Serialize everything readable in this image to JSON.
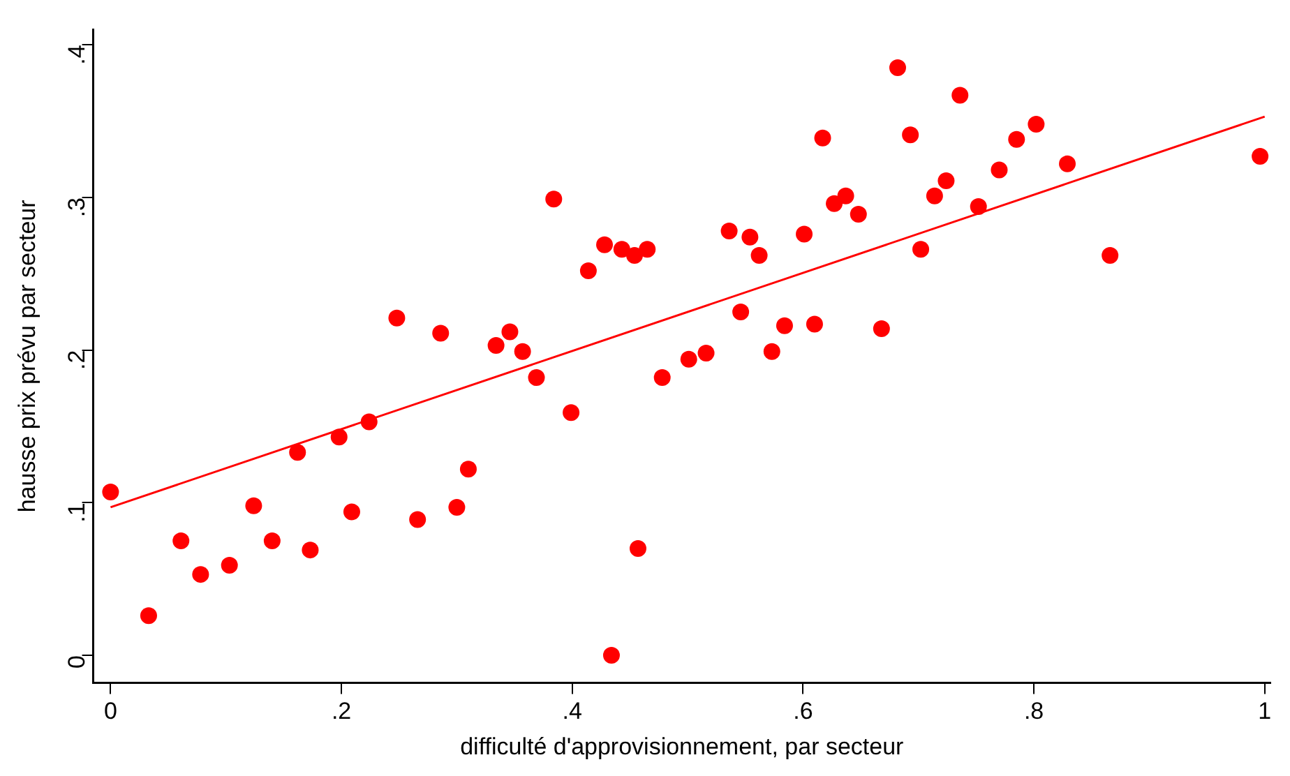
{
  "chart_data": {
    "type": "scatter",
    "xlabel": "difficulté d'approvisionnement, par secteur",
    "ylabel": "hausse prix prévu par secteur",
    "xlim": [
      -0.015,
      1.005
    ],
    "ylim": [
      -0.018,
      0.41
    ],
    "xticks": [
      0,
      {
        "value": 0.2,
        "label": ".2"
      },
      {
        "value": 0.4,
        "label": ".4"
      },
      {
        "value": 0.6,
        "label": ".6"
      },
      {
        "value": 0.8,
        "label": ".8"
      },
      1
    ],
    "yticks": [
      0,
      {
        "value": 0.1,
        "label": ".1"
      },
      {
        "value": 0.2,
        "label": ".2"
      },
      {
        "value": 0.3,
        "label": ".3"
      },
      {
        "value": 0.4,
        "label": ".4"
      }
    ],
    "grid": false,
    "legend": false,
    "series": [
      {
        "marker": "circle",
        "color": "#ff0000",
        "x": [
          0,
          0.033,
          0.061,
          0.078,
          0.103,
          0.124,
          0.14,
          0.162,
          0.173,
          0.198,
          0.209,
          0.224,
          0.248,
          0.266,
          0.286,
          0.3,
          0.31,
          0.334,
          0.346,
          0.357,
          0.369,
          0.384,
          0.399,
          0.414,
          0.428,
          0.434,
          0.443,
          0.454,
          0.457,
          0.465,
          0.478,
          0.501,
          0.516,
          0.536,
          0.546,
          0.554,
          0.562,
          0.573,
          0.584,
          0.601,
          0.61,
          0.617,
          0.627,
          0.637,
          0.648,
          0.668,
          0.682,
          0.693,
          0.702,
          0.714,
          0.724,
          0.736,
          0.752,
          0.77,
          0.785,
          0.802,
          0.829,
          0.866,
          0.996
        ],
        "values": [
          0.107,
          0.026,
          0.075,
          0.053,
          0.059,
          0.098,
          0.075,
          0.133,
          0.069,
          0.143,
          0.094,
          0.153,
          0.221,
          0.089,
          0.211,
          0.097,
          0.122,
          0.203,
          0.212,
          0.199,
          0.182,
          0.299,
          0.159,
          0.252,
          0.269,
          0,
          0.266,
          0.262,
          0.07,
          0.266,
          0.182,
          0.194,
          0.198,
          0.278,
          0.225,
          0.274,
          0.262,
          0.199,
          0.216,
          0.276,
          0.217,
          0.339,
          0.296,
          0.301,
          0.289,
          0.214,
          0.385,
          0.341,
          0.266,
          0.301,
          0.311,
          0.367,
          0.294,
          0.318,
          0.338,
          0.348,
          0.322,
          0.262,
          0.327
        ]
      },
      {
        "type": "line",
        "color": "#ff0000",
        "x": [
          0,
          1
        ],
        "values": [
          0.097,
          0.353
        ]
      }
    ]
  }
}
